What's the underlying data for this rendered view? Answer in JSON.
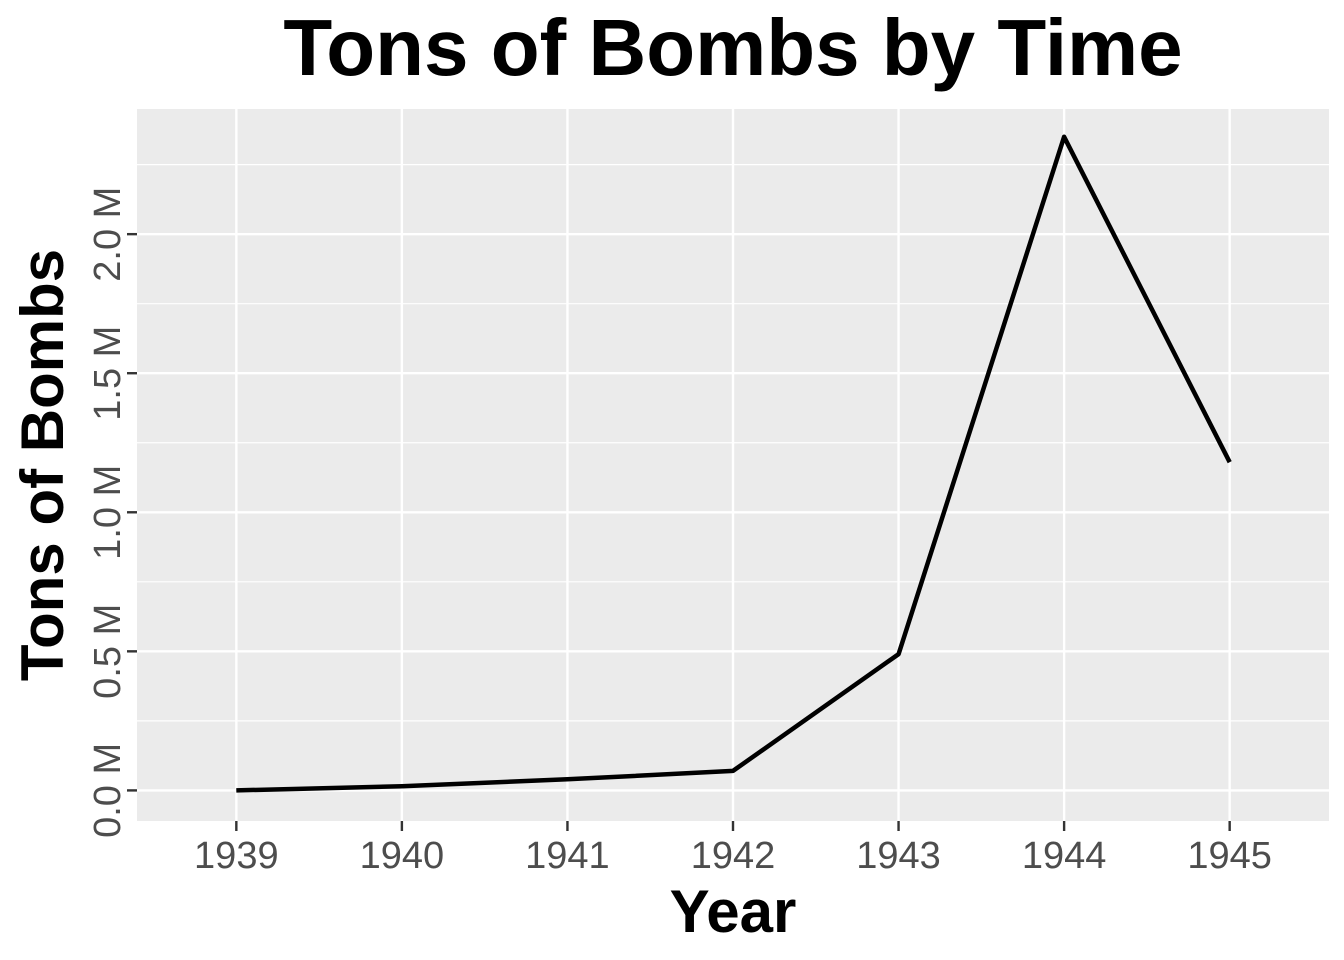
{
  "chart_data": {
    "type": "line",
    "title": "Tons of Bombs by Time",
    "xlabel": "Year",
    "ylabel": "Tons of Bombs",
    "x": [
      1939,
      1940,
      1941,
      1942,
      1943,
      1944,
      1945
    ],
    "series": [
      {
        "values": [
          0,
          15000,
          40000,
          70000,
          490000,
          2350000,
          1180000
        ]
      }
    ],
    "xlim": [
      1938.4,
      1945.6
    ],
    "ylim": [
      -110000,
      2450000
    ],
    "x_ticks": [
      "1939",
      "1940",
      "1941",
      "1942",
      "1943",
      "1944",
      "1945"
    ],
    "y_ticks": [
      {
        "value": 0,
        "label": "0.0 M"
      },
      {
        "value": 500000,
        "label": "0.5 M"
      },
      {
        "value": 1000000,
        "label": "1.0 M"
      },
      {
        "value": 1500000,
        "label": "1.5 M"
      },
      {
        "value": 2000000,
        "label": "2.0 M"
      }
    ],
    "grid": true,
    "panel_background": "#ebebeb",
    "grid_color": "#ffffff",
    "line_color": "#000000",
    "tick_label_color": "#4d4d4d"
  }
}
